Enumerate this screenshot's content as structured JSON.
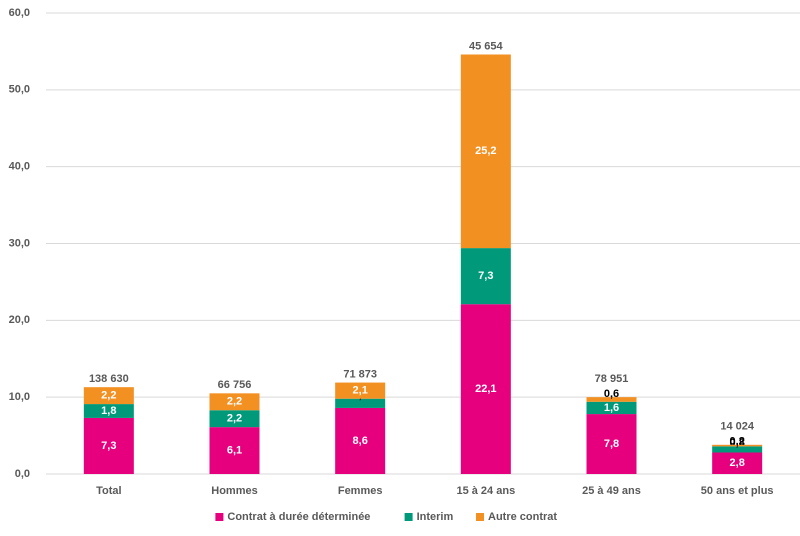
{
  "chart_data": {
    "type": "stacked_bar",
    "categories": [
      "Total",
      "Hommes",
      "Femmes",
      "15 à 24 ans",
      "25 à 49 ans",
      "50 ans et plus"
    ],
    "series": [
      {
        "name": "Contrat à durée déterminée",
        "color": "#e6007e",
        "values": [
          7.3,
          6.1,
          8.6,
          22.1,
          7.8,
          2.8
        ],
        "value_labels": [
          "7,3",
          "6,1",
          "8,6",
          "22,1",
          "7,8",
          "2,8"
        ]
      },
      {
        "name": "Interim",
        "color": "#00997a",
        "values": [
          1.8,
          2.2,
          1.2,
          7.3,
          1.6,
          0.8
        ],
        "value_labels": [
          "1,8",
          "2,2",
          "1,2",
          "7,3",
          "1,6",
          "0,8"
        ]
      },
      {
        "name": "Autre contrat",
        "color": "#f39022",
        "values": [
          2.2,
          2.2,
          2.1,
          25.2,
          0.6,
          0.2
        ],
        "value_labels": [
          "2,2",
          "2,2",
          "2,1",
          "25,2",
          "0,6",
          "0,2"
        ]
      }
    ],
    "bar_annotations": [
      "138 630",
      "66 756",
      "71 873",
      "45 654",
      "78 951",
      "14 024"
    ],
    "ylim": [
      0,
      60
    ],
    "yticks": [
      {
        "value": 0,
        "label": "0,0"
      },
      {
        "value": 10,
        "label": "10,0"
      },
      {
        "value": 20,
        "label": "20,0"
      },
      {
        "value": 30,
        "label": "30,0"
      },
      {
        "value": 40,
        "label": "40,0"
      },
      {
        "value": 50,
        "label": "50,0"
      },
      {
        "value": 60,
        "label": "60,0"
      }
    ],
    "grid": true,
    "legend": "bottom"
  }
}
